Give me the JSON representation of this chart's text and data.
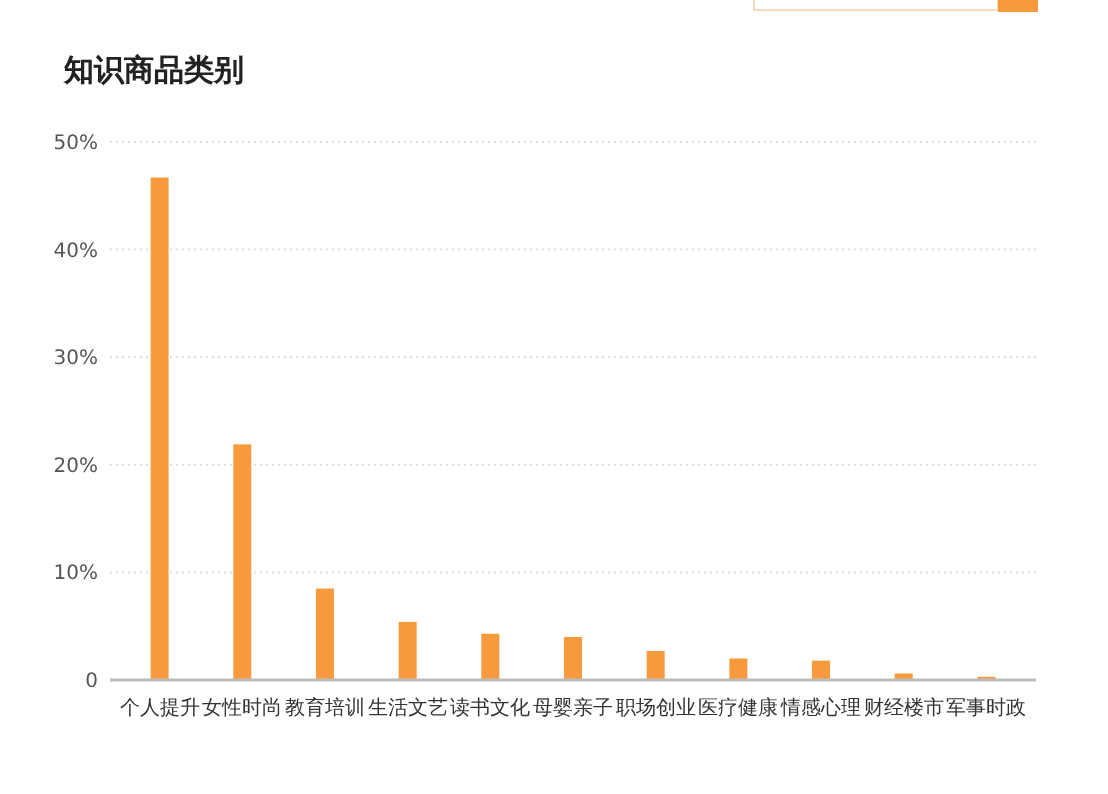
{
  "chart_data": {
    "type": "bar",
    "title": "知识商品类别",
    "categories": [
      "个人提升",
      "女性时尚",
      "教育培训",
      "生活文艺",
      "读书文化",
      "母婴亲子",
      "职场创业",
      "医疗健康",
      "情感心理",
      "财经楼市",
      "军事时政"
    ],
    "values": [
      46.7,
      21.9,
      8.5,
      5.4,
      4.3,
      4.0,
      2.7,
      2.0,
      1.8,
      0.6,
      0.3
    ],
    "color": "#f79a3e",
    "ylim": [
      0,
      50
    ],
    "yticks": [
      0,
      {
        "value": 10,
        "label": "10%"
      },
      {
        "value": 20,
        "label": "20%"
      },
      {
        "value": 30,
        "label": "30%"
      },
      {
        "value": 40,
        "label": "40%"
      },
      {
        "value": 50,
        "label": "50%"
      }
    ],
    "grid": "y"
  }
}
